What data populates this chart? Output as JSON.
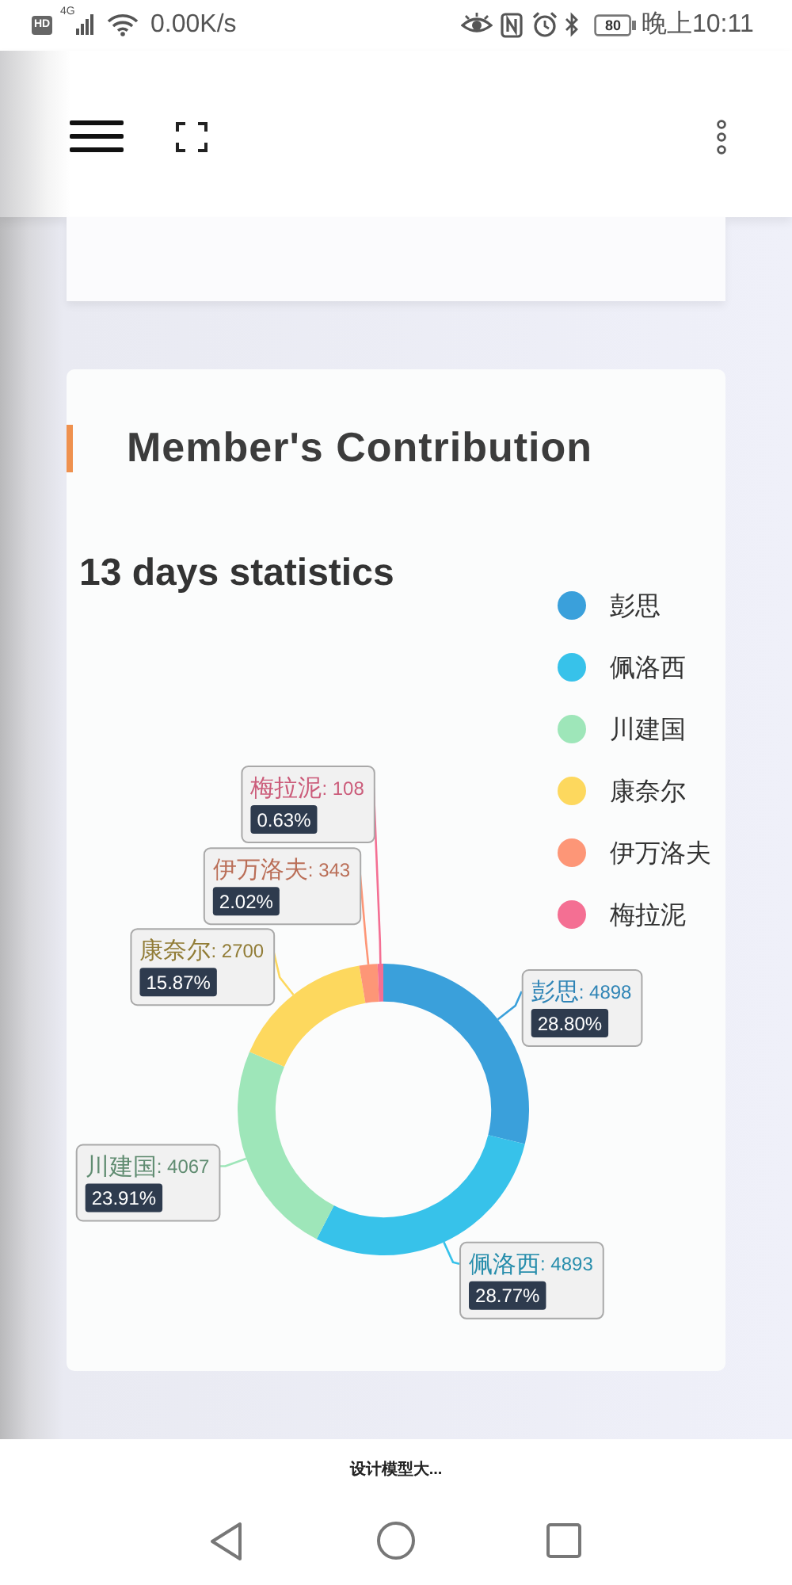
{
  "chart_data": {
    "type": "donut",
    "title": "Member's Contribution",
    "subtitle": "13 days statistics",
    "categories": [
      "彭思",
      "佩洛西",
      "川建国",
      "康奈尔",
      "伊万洛夫",
      "梅拉泥"
    ],
    "values": [
      28.8,
      28.77,
      23.91,
      15.87,
      2.02,
      0.63
    ],
    "value_labels": [
      ": 4898 28.80%",
      ": 4893 28.77%",
      ": 4067 23.91%",
      ": 2700 15.87%",
      ": 343 2.02%",
      ": 108 0.63%"
    ],
    "colors": [
      "#3aa0db",
      "#37c2ea",
      "#9ee6b9",
      "#fdd85e",
      "#fd9677",
      "#f46f93"
    ],
    "legend": "top right",
    "annotations": [
      "HD",
      "4G",
      "0.00K/s",
      "80",
      "晚上10:11",
      "设计模型大..."
    ]
  }
}
